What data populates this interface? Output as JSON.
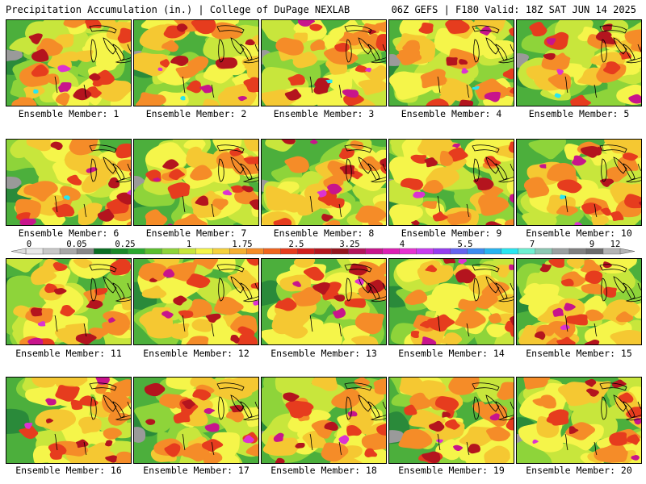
{
  "header": {
    "left": "Precipitation Accumulation (in.) | College of DuPage NEXLAB",
    "right": "06Z GEFS | F180 Valid: 18Z SAT JUN 14 2025"
  },
  "member_label_prefix": "Ensemble Member: ",
  "members": [
    1,
    2,
    3,
    4,
    5,
    6,
    7,
    8,
    9,
    10,
    11,
    12,
    13,
    14,
    15,
    16,
    17,
    18,
    19,
    20
  ],
  "colorbar": {
    "tick_labels": [
      "0",
      "0.05",
      "0.25",
      "1",
      "1.75",
      "2.5",
      "3.25",
      "4",
      "5.5",
      "7",
      "9",
      "12"
    ],
    "colors": [
      "#e8e8e8",
      "#c8c8c8",
      "#a8a8a8",
      "#888888",
      "#0a6e23",
      "#1a8a28",
      "#2aa82e",
      "#5cbf2f",
      "#8ed43a",
      "#c8e63c",
      "#f5f54a",
      "#f5d23c",
      "#f5b032",
      "#f58c28",
      "#f0641e",
      "#e63c1e",
      "#d21e1e",
      "#b4141e",
      "#96141e",
      "#b4145a",
      "#c8148c",
      "#dc1eb4",
      "#e632d2",
      "#c83cf0",
      "#963cf0",
      "#6464f0",
      "#3c8cf0",
      "#28b4f0",
      "#28e6f0",
      "#6ef0d2",
      "#8cc8b4",
      "#9ba0a0",
      "#808080",
      "#6c6c6c",
      "#b4b4b4"
    ]
  },
  "map_colors": {
    "gray": "#9a9a9a",
    "dark_green": "#2a8a3a",
    "green": "#4caf3c",
    "light_green": "#8ed43a",
    "yellow_green": "#c8e63c",
    "yellow": "#f5f54a",
    "gold": "#f5c832",
    "orange": "#f58c28",
    "red": "#e63c1e",
    "dark_red": "#b4141e",
    "magenta": "#c8148c",
    "purple": "#dc32d2",
    "cyan": "#28e6f0"
  },
  "icons": {
    "colorbar_arrows": "triangle-arrow-icon"
  }
}
